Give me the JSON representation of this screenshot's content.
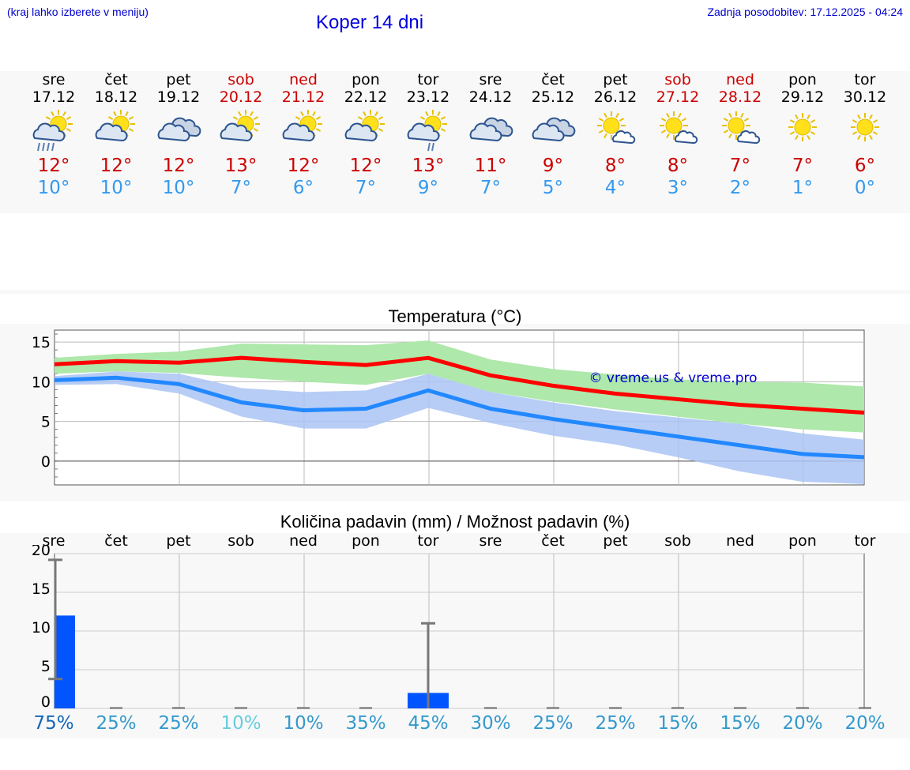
{
  "header": {
    "menu_hint": "(kraj lahko izberete v meniju)",
    "title": "Koper 14 dni",
    "updated": "Zadnja posodobitev: 17.12.2025 - 04:24"
  },
  "colors": {
    "weekend": "#cc0000",
    "max_temp": "#cc0000",
    "min_temp": "#3399ee",
    "max_line": "#ff0000",
    "min_line": "#2288ff",
    "max_band": "#aee8aa",
    "min_band": "#aac4f4",
    "bar": "#0055ff"
  },
  "days": [
    {
      "name": "sre",
      "date": "17.12",
      "weekend": false,
      "icon": "sun-cloud-rain-icon",
      "max": "12°",
      "min": "10°"
    },
    {
      "name": "čet",
      "date": "18.12",
      "weekend": false,
      "icon": "sun-cloud-icon",
      "max": "12°",
      "min": "10°"
    },
    {
      "name": "pet",
      "date": "19.12",
      "weekend": false,
      "icon": "cloudy-icon",
      "max": "12°",
      "min": "10°"
    },
    {
      "name": "sob",
      "date": "20.12",
      "weekend": true,
      "icon": "sun-cloud-icon",
      "max": "13°",
      "min": "7°"
    },
    {
      "name": "ned",
      "date": "21.12",
      "weekend": true,
      "icon": "sun-cloud-icon",
      "max": "12°",
      "min": "6°"
    },
    {
      "name": "pon",
      "date": "22.12",
      "weekend": false,
      "icon": "sun-cloud-icon",
      "max": "12°",
      "min": "7°"
    },
    {
      "name": "tor",
      "date": "23.12",
      "weekend": false,
      "icon": "sun-cloud-shower-icon",
      "max": "13°",
      "min": "9°"
    },
    {
      "name": "sre",
      "date": "24.12",
      "weekend": false,
      "icon": "cloudy-icon",
      "max": "11°",
      "min": "7°"
    },
    {
      "name": "čet",
      "date": "25.12",
      "weekend": false,
      "icon": "cloudy-icon",
      "max": "9°",
      "min": "5°"
    },
    {
      "name": "pet",
      "date": "26.12",
      "weekend": false,
      "icon": "sun-small-cloud-icon",
      "max": "8°",
      "min": "4°"
    },
    {
      "name": "sob",
      "date": "27.12",
      "weekend": true,
      "icon": "sun-small-cloud-icon",
      "max": "8°",
      "min": "3°"
    },
    {
      "name": "ned",
      "date": "28.12",
      "weekend": true,
      "icon": "sun-small-cloud-icon",
      "max": "7°",
      "min": "2°"
    },
    {
      "name": "pon",
      "date": "29.12",
      "weekend": false,
      "icon": "sun-icon",
      "max": "7°",
      "min": "1°"
    },
    {
      "name": "tor",
      "date": "30.12",
      "weekend": false,
      "icon": "sun-icon",
      "max": "6°",
      "min": "0°"
    }
  ],
  "chart_data": [
    {
      "type": "line",
      "title": "Temperatura (°C)",
      "watermark": "© vreme.us & vreme.pro",
      "x": [
        0,
        1,
        2,
        3,
        4,
        5,
        6,
        7,
        8,
        9,
        10,
        11,
        12,
        13
      ],
      "ylim": [
        -3,
        16.5
      ],
      "yticks": [
        "15",
        "10",
        "5",
        "0"
      ],
      "ytick_values": [
        15,
        10,
        5,
        0
      ],
      "series": [
        {
          "name": "max",
          "values": [
            12.2,
            12.6,
            12.4,
            13.0,
            12.5,
            12.1,
            13.0,
            10.8,
            9.5,
            8.5,
            7.8,
            7.1,
            6.6,
            6.1
          ],
          "band_low": [
            11.0,
            11.3,
            11.1,
            10.5,
            10.0,
            9.6,
            11.0,
            8.7,
            7.5,
            6.5,
            5.6,
            4.7,
            4.0,
            3.6
          ],
          "band_high": [
            13.0,
            13.5,
            13.8,
            14.8,
            14.7,
            14.6,
            15.2,
            12.8,
            11.6,
            10.9,
            10.3,
            10.0,
            9.9,
            9.4
          ]
        },
        {
          "name": "min",
          "values": [
            10.2,
            10.5,
            9.7,
            7.4,
            6.4,
            6.6,
            8.9,
            6.6,
            5.3,
            4.2,
            3.1,
            2.0,
            0.9,
            0.5
          ],
          "band_low": [
            9.6,
            9.7,
            8.5,
            5.6,
            4.1,
            4.1,
            6.7,
            4.8,
            3.2,
            2.1,
            0.5,
            -1.3,
            -2.6,
            -2.9
          ],
          "band_high": [
            10.7,
            11.3,
            11.0,
            9.2,
            8.7,
            8.9,
            11.0,
            8.7,
            7.4,
            6.3,
            5.5,
            4.7,
            3.5,
            2.7
          ]
        }
      ]
    },
    {
      "type": "bar",
      "title": "Količina padavin (mm) / Možnost padavin (%)",
      "categories": [
        "sre",
        "čet",
        "pet",
        "sob",
        "ned",
        "pon",
        "tor",
        "sre",
        "čet",
        "pet",
        "sob",
        "ned",
        "pon",
        "tor"
      ],
      "ylim": [
        0,
        20
      ],
      "yticks": [
        "20",
        "15",
        "10",
        "5",
        "0"
      ],
      "ytick_values": [
        20,
        15,
        10,
        5,
        0
      ],
      "values": [
        12,
        0,
        0,
        0,
        0,
        0,
        2,
        0,
        0,
        0,
        0,
        0,
        0,
        0
      ],
      "error_low": [
        3.8,
        null,
        null,
        null,
        null,
        null,
        0,
        null,
        null,
        null,
        null,
        null,
        null,
        null
      ],
      "error_high": [
        19.2,
        null,
        null,
        null,
        null,
        null,
        11,
        null,
        null,
        null,
        null,
        null,
        null,
        null
      ],
      "probability": [
        "75%",
        "25%",
        "25%",
        "10%",
        "10%",
        "35%",
        "45%",
        "30%",
        "25%",
        "25%",
        "15%",
        "15%",
        "20%",
        "20%"
      ],
      "probability_colors": [
        "#1166bb",
        "#3399cc",
        "#3399cc",
        "#66ccdd",
        "#3399cc",
        "#3399cc",
        "#3399cc",
        "#3399cc",
        "#3399cc",
        "#3399cc",
        "#3399cc",
        "#3399cc",
        "#3399cc",
        "#3399cc"
      ]
    }
  ]
}
